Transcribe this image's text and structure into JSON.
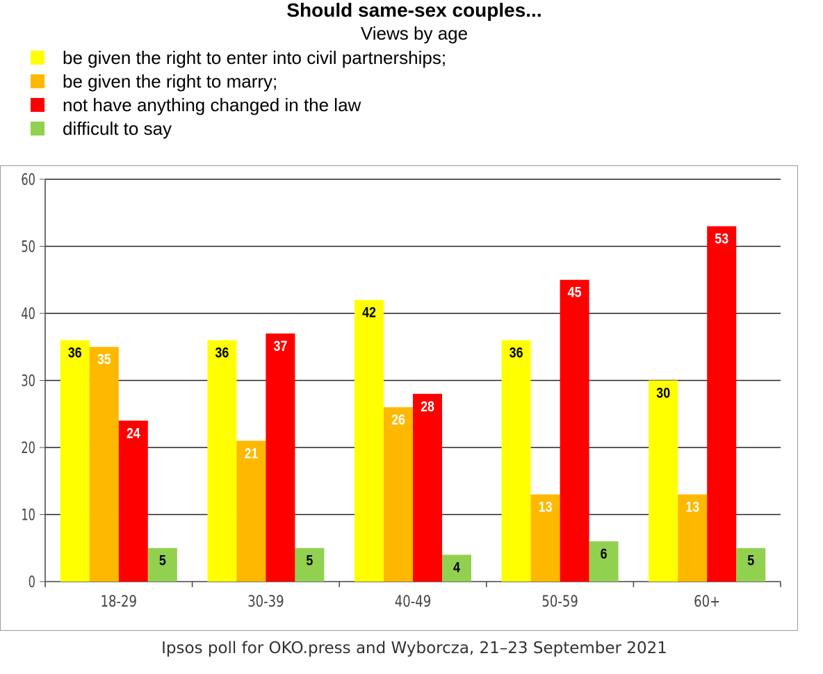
{
  "chart_data": {
    "type": "bar",
    "title": "Should same-sex couples...",
    "subtitle": "Views by age",
    "categories": [
      "18-29",
      "30-39",
      "40-49",
      "50-59",
      "60+"
    ],
    "series": [
      {
        "name": "be given the right to enter into civil partnerships;",
        "color": "#ffff00",
        "label_color": "#000000",
        "values": [
          36,
          36,
          42,
          36,
          30
        ]
      },
      {
        "name": "be given the right to marry;",
        "color": "#ffb800",
        "label_color": "#ffffff",
        "values": [
          35,
          21,
          26,
          13,
          13
        ]
      },
      {
        "name": "not have anything changed in the law",
        "color": "#ff0000",
        "label_color": "#ffffff",
        "values": [
          24,
          37,
          28,
          45,
          53
        ]
      },
      {
        "name": "difficult to say",
        "color": "#92d050",
        "label_color": "#000000",
        "values": [
          5,
          5,
          4,
          6,
          5
        ]
      }
    ],
    "ylim": [
      0,
      60
    ],
    "yticks": [
      0,
      10,
      20,
      30,
      40,
      50,
      60
    ],
    "grid": true,
    "legend_position": "top-left",
    "xlabel": "",
    "ylabel": ""
  },
  "caption": "Ipsos poll for OKO.press and Wyborcza, 21–23 September 2021"
}
